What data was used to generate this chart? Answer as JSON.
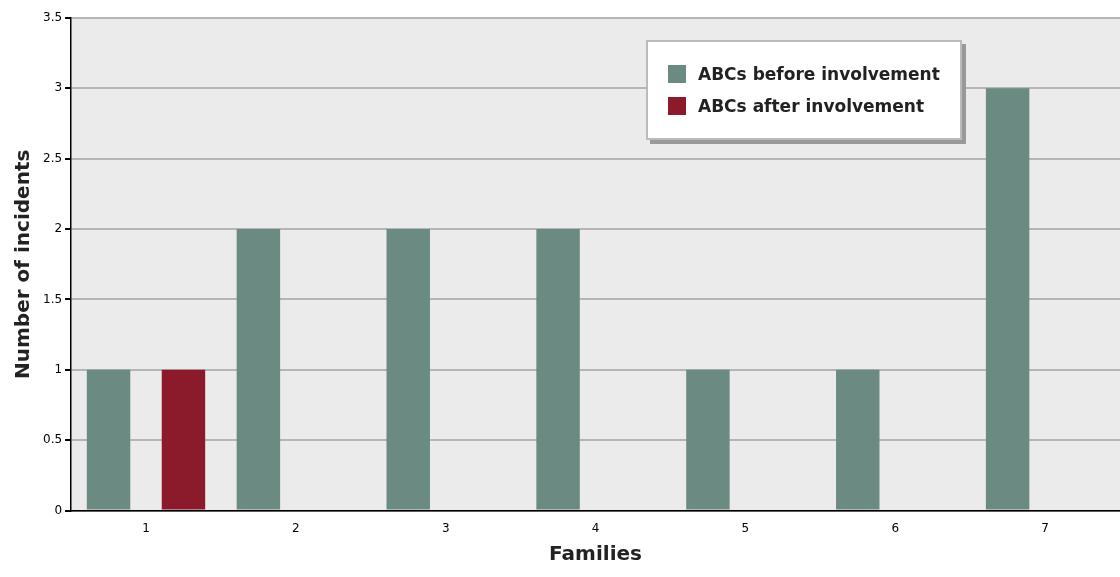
{
  "chart_data": {
    "type": "bar",
    "xlabel": "Families",
    "ylabel": "Number of incidents",
    "categories": [
      "1",
      "2",
      "3",
      "4",
      "5",
      "6",
      "7"
    ],
    "series": [
      {
        "name": "ABCs before involvement",
        "color": "#6a8a82",
        "values": [
          1,
          2,
          2,
          2,
          1,
          1,
          3
        ]
      },
      {
        "name": "ABCs after involvement",
        "color": "#8b1a2b",
        "values": [
          1,
          0,
          0,
          0,
          0,
          0,
          0
        ]
      }
    ],
    "ylim": [
      0,
      3.5
    ],
    "yticks": [
      0,
      0.5,
      1,
      1.5,
      2,
      2.5,
      3,
      3.5
    ],
    "grid": "y",
    "legend": "top right"
  }
}
